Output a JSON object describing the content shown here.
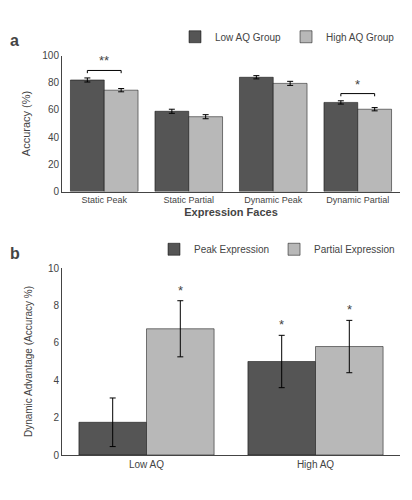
{
  "chart_data": [
    {
      "type": "bar",
      "title": "a",
      "categories": [
        "Static Peak",
        "Static Partial",
        "Dynamic Peak",
        "Dynamic Partial"
      ],
      "series": [
        {
          "name": "Low AQ Group",
          "color": "#555555",
          "values": [
            82.0,
            59.0,
            84.0,
            65.5
          ],
          "errors": [
            1.5,
            1.5,
            1.2,
            1.2
          ]
        },
        {
          "name": "High AQ Group",
          "color": "#b8b8b8",
          "values": [
            74.5,
            55.0,
            79.5,
            60.5
          ],
          "errors": [
            1.2,
            1.5,
            1.5,
            1.2
          ]
        }
      ],
      "xlabel": "Expression Faces",
      "ylabel": "Accuracy (%)",
      "ylim": [
        0,
        100
      ],
      "yticks": [
        0,
        20,
        40,
        60,
        80,
        100
      ],
      "legend": "upper right",
      "grid": false,
      "annotations": [
        {
          "text": "**",
          "category": "Static Peak",
          "y": 89
        },
        {
          "text": "*",
          "category": "Dynamic Partial",
          "y": 72
        }
      ]
    },
    {
      "type": "bar",
      "title": "b",
      "categories": [
        "Low AQ",
        "High AQ"
      ],
      "series": [
        {
          "name": "Peak Expression",
          "color": "#555555",
          "values": [
            1.75,
            5.0
          ],
          "errors": [
            1.3,
            1.4
          ]
        },
        {
          "name": "Partial Expression",
          "color": "#b8b8b8",
          "values": [
            6.75,
            5.8
          ],
          "errors": [
            1.5,
            1.4
          ]
        }
      ],
      "ylabel": "Dynamic Advantage (Accuracy %)",
      "ylim": [
        0,
        10
      ],
      "yticks": [
        0,
        2,
        4,
        6,
        8,
        10
      ],
      "legend": "upper right",
      "grid": false,
      "annotations": [
        {
          "text": "*",
          "category": "Low AQ",
          "series": "Partial Expression"
        },
        {
          "text": "*",
          "category": "High AQ",
          "series": "Peak Expression"
        },
        {
          "text": "*",
          "category": "High AQ",
          "series": "Partial Expression"
        }
      ]
    }
  ]
}
